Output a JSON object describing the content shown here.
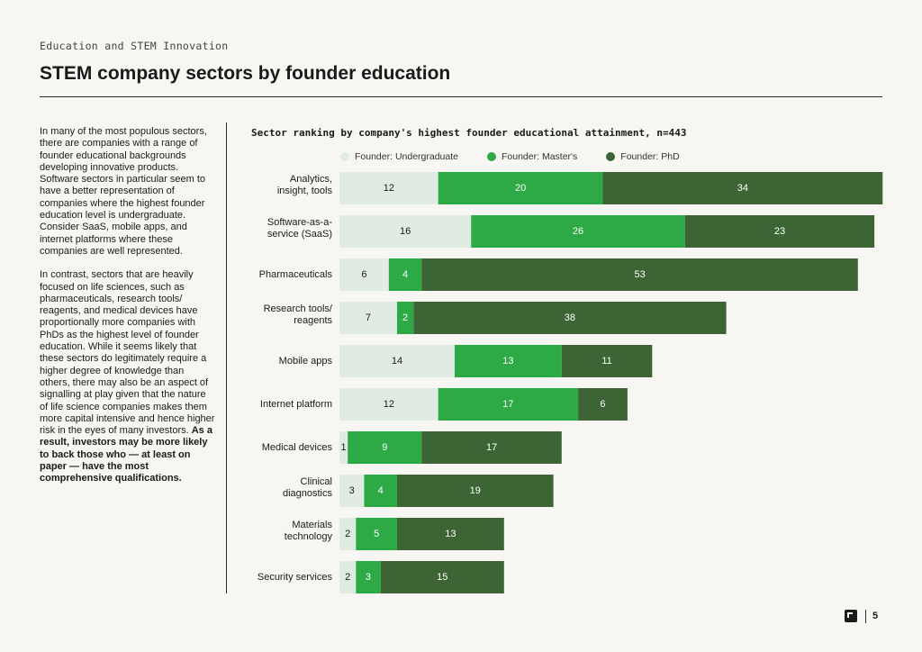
{
  "header": {
    "eyebrow": "Education and STEM Innovation",
    "title": "STEM company sectors by founder education"
  },
  "body": {
    "p1": "In many of the most populous sectors, there are companies with a range of founder educational backgrounds developing innovative products. Software sectors in particular seem to have a better representation of companies where the highest founder education level is undergraduate. Consider SaaS, mobile apps, and internet platforms where these companies are well represented.",
    "p2_plain": "In contrast, sectors that are heavily focused on life sciences, such as pharmaceuticals, research tools/ reagents, and medical devices have proportionally more companies with PhDs as the highest level of founder education. While it seems likely that these sectors do legitimately require a higher degree of knowledge than others, there may also be an aspect of signalling at play given that the nature of life science companies makes them more capital intensive and hence higher risk in the eyes of many investors. ",
    "p2_bold": "As a result, investors may be more likely to back those who — at least on paper — have the most comprehensive qualifications."
  },
  "footer": {
    "page_number": "5"
  },
  "chart_data": {
    "type": "bar",
    "orientation": "horizontal",
    "stacked": true,
    "title": "Sector ranking by company's highest founder educational attainment, n=443",
    "legend_position": "top",
    "categories": [
      "Analytics, insight, tools",
      "Software-as-a-service (SaaS)",
      "Pharmaceuticals",
      "Research tools/ reagents",
      "Mobile apps",
      "Internet platform",
      "Medical devices",
      "Clinical diagnostics",
      "Materials technology",
      "Security services"
    ],
    "series": [
      {
        "name": "Founder: Undergraduate",
        "color": "#e0ece2",
        "text_color": "#1a1a1a",
        "values": [
          12,
          16,
          6,
          7,
          14,
          12,
          1,
          3,
          2,
          2
        ]
      },
      {
        "name": "Founder: Master's",
        "color": "#2daa45",
        "text_color": "#ffffff",
        "values": [
          20,
          26,
          4,
          2,
          13,
          17,
          9,
          4,
          5,
          3
        ]
      },
      {
        "name": "Founder: PhD",
        "color": "#3d6434",
        "text_color": "#ffffff",
        "values": [
          34,
          23,
          53,
          38,
          11,
          6,
          17,
          19,
          13,
          15
        ]
      }
    ]
  }
}
